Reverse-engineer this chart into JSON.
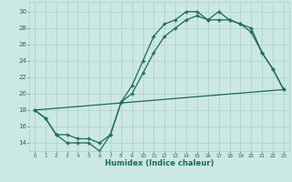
{
  "xlabel": "Humidex (Indice chaleur)",
  "bg_color": "#cce8e2",
  "grid_color": "#aad0c8",
  "line_color": "#1a6b5a",
  "xlim": [
    -0.5,
    23.5
  ],
  "ylim": [
    13.0,
    31.2
  ],
  "xticks": [
    0,
    1,
    2,
    3,
    4,
    5,
    6,
    7,
    8,
    9,
    10,
    11,
    12,
    13,
    14,
    15,
    16,
    17,
    18,
    19,
    20,
    21,
    22,
    23
  ],
  "yticks": [
    14,
    16,
    18,
    20,
    22,
    24,
    26,
    28,
    30
  ],
  "line1_x": [
    0,
    1,
    2,
    3,
    4,
    5,
    6,
    7,
    8,
    9,
    10,
    11,
    12,
    13,
    14,
    15,
    16,
    17,
    18,
    19,
    20,
    21,
    22,
    23
  ],
  "line1_y": [
    18,
    17,
    15,
    14,
    14,
    14,
    13,
    15,
    19,
    21,
    24,
    27,
    28.5,
    29,
    30,
    30,
    29,
    30,
    29,
    28.5,
    28,
    25,
    23,
    20.5
  ],
  "line2_x": [
    0,
    1,
    2,
    3,
    4,
    5,
    6,
    7,
    8,
    9,
    10,
    11,
    12,
    13,
    14,
    15,
    16,
    17,
    18,
    19,
    20,
    21,
    22,
    23
  ],
  "line2_y": [
    18,
    17,
    15,
    15,
    14.5,
    14.5,
    14,
    15,
    19,
    20,
    22.5,
    25,
    27,
    28,
    29,
    29.5,
    29,
    29,
    29,
    28.5,
    27.5,
    25,
    23,
    20.5
  ],
  "line3_x": [
    0,
    23
  ],
  "line3_y": [
    18.0,
    20.5
  ]
}
